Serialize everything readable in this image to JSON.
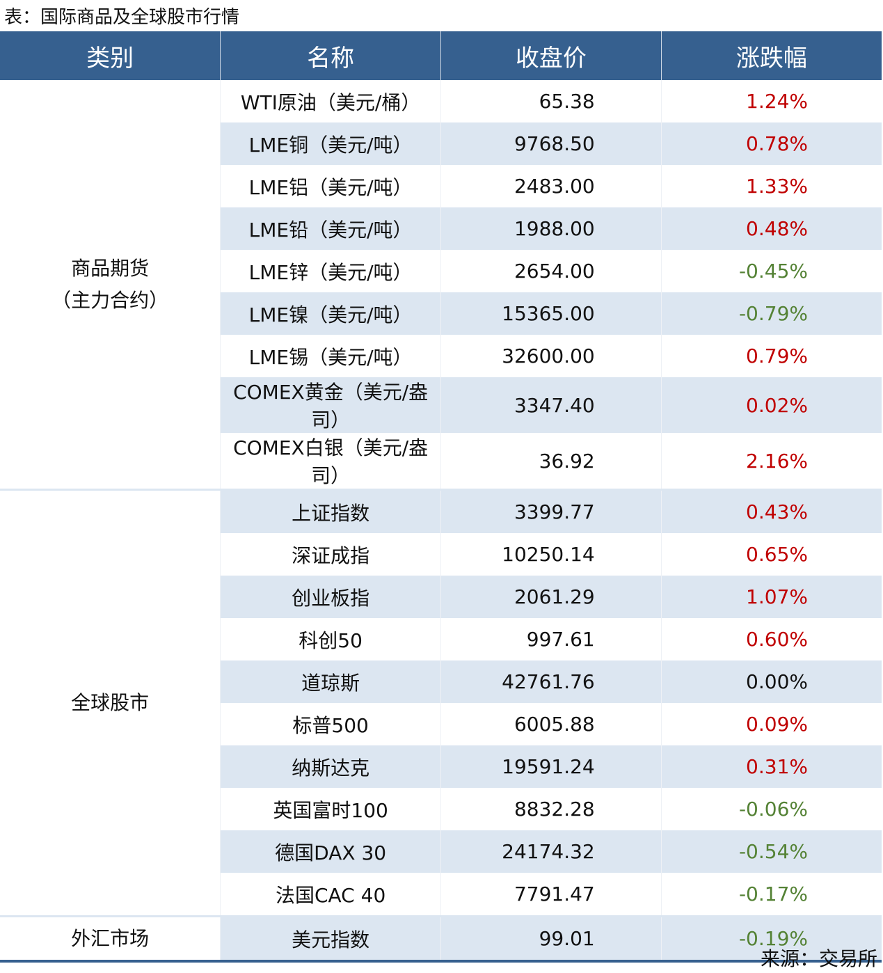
{
  "title": "表：国际商品及全球股市行情",
  "headers": [
    "类别",
    "名称",
    "收盘价",
    "涨跌幅"
  ],
  "groups": [
    {
      "category": "商品期货\n（主力合约）",
      "rows": [
        [
          "WTI原油（美元/桶）",
          "65.38",
          "1.24%"
        ],
        [
          "LME铜（美元/吨）",
          "9768.50",
          "0.78%"
        ],
        [
          "LME铝（美元/吨）",
          "2483.00",
          "1.33%"
        ],
        [
          "LME铅（美元/吨）",
          "1988.00",
          "0.48%"
        ],
        [
          "LME锌（美元/吨）",
          "2654.00",
          "-0.45%"
        ],
        [
          "LME镍（美元/吨）",
          "15365.00",
          "-0.79%"
        ],
        [
          "LME锡（美元/吨）",
          "32600.00",
          "0.79%"
        ],
        [
          "COMEX黄金（美元/盎司）",
          "3347.40",
          "0.02%"
        ],
        [
          "COMEX白银（美元/盎司）",
          "36.92",
          "2.16%"
        ]
      ]
    },
    {
      "category": "全球股市",
      "rows": [
        [
          "上证指数",
          "3399.77",
          "0.43%"
        ],
        [
          "深证成指",
          "10250.14",
          "0.65%"
        ],
        [
          "创业板指",
          "2061.29",
          "1.07%"
        ],
        [
          "科创50",
          "997.61",
          "0.60%"
        ],
        [
          "道琼斯",
          "42761.76",
          "0.00%"
        ],
        [
          "标普500",
          "6005.88",
          "0.09%"
        ],
        [
          "纳斯达克",
          "19591.24",
          "0.31%"
        ],
        [
          "英国富时100",
          "8832.28",
          "-0.06%"
        ],
        [
          "德国DAX 30",
          "24174.32",
          "-0.54%"
        ],
        [
          "法国CAC 40",
          "7791.47",
          "-0.17%"
        ]
      ]
    },
    {
      "category": "外汇市场",
      "rows": [
        [
          "美元指数",
          "99.01",
          "-0.19%"
        ]
      ]
    }
  ],
  "source": "来源：交易所",
  "colors": {
    "header": "#36608f",
    "stripe": "#dce6f1",
    "up": "#c00000",
    "down": "#548235"
  }
}
